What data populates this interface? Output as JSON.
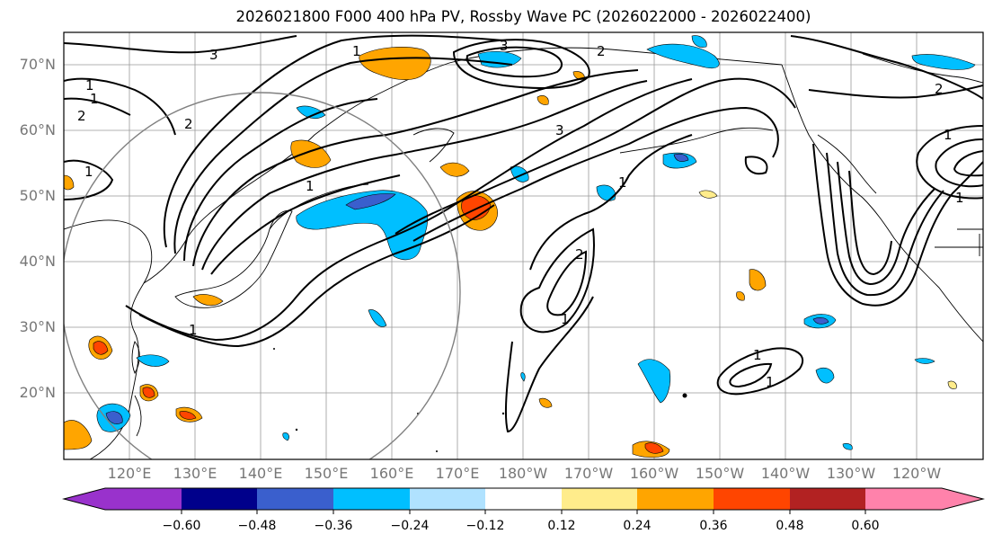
{
  "title": "2026021800 F000 400 hPa PV, Rossby Wave PC (2026022000 - 2026022400)",
  "lat_labels": [
    "70°N",
    "60°N",
    "50°N",
    "40°N",
    "30°N",
    "20°N"
  ],
  "lon_labels": [
    "120°E",
    "130°E",
    "140°E",
    "150°E",
    "160°E",
    "170°E",
    "180°W",
    "170°W",
    "160°W",
    "150°W",
    "140°W",
    "130°W",
    "120°W"
  ],
  "colorbar": {
    "labels": [
      "−0.60",
      "−0.48",
      "−0.36",
      "−0.24",
      "−0.12",
      "0.12",
      "0.24",
      "0.36",
      "0.48",
      "0.60"
    ],
    "colors": [
      "#9932CC",
      "#00008B",
      "#3A5FCD",
      "#00BFFF",
      "#B0E2FF",
      "#FFFFFF",
      "#FFEC8B",
      "#FFA500",
      "#FF4500",
      "#B22222",
      "#FF82AB"
    ]
  },
  "pv_contour_labels": [
    "1",
    "1",
    "1",
    "1",
    "2",
    "2",
    "2",
    "3",
    "3",
    "1",
    "1",
    "2",
    "1",
    "1",
    "1",
    "1",
    "2",
    "1",
    "1",
    "3"
  ],
  "anomaly_colors": {
    "neg_light": "#00BFFF",
    "neg_mid": "#3A5FCD",
    "pos_light": "#FFA500",
    "pos_mid": "#FF4500",
    "pos_dark": "#B22222"
  }
}
